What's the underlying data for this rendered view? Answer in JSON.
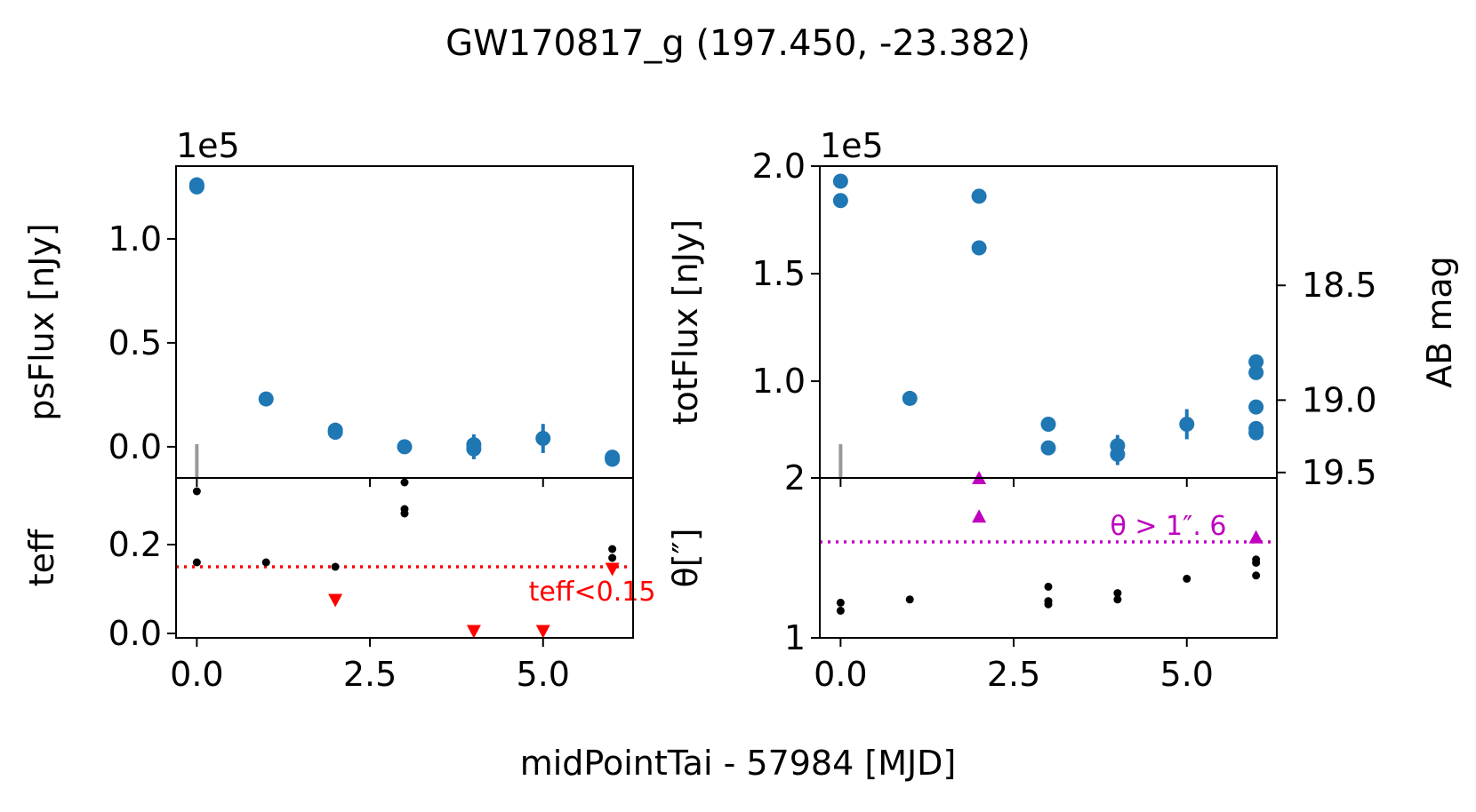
{
  "figure": {
    "title": "GW170817_g (197.450, -23.382)",
    "xlabel": "midPointTai - 57984 [MJD]"
  },
  "colors": {
    "point": "#1f77b4",
    "aux_point": "#000000",
    "teff_cut": "#ff0000",
    "theta_cut": "#bf00bf",
    "marker_line": "#999999"
  },
  "chart_data": [
    {
      "id": "psflux",
      "type": "scatter",
      "ylabel": "psFlux [nJy]",
      "offset_label": "1e5",
      "scale": 100000,
      "xlim": [
        -0.3,
        6.3
      ],
      "ylim": [
        -0.15,
        1.35
      ],
      "yticks": [
        0.0,
        0.5,
        1.0
      ],
      "ytick_labels": [
        "0.0",
        "0.5",
        "1.0"
      ],
      "xticks": [
        0.0,
        2.5,
        5.0
      ],
      "marker_x": 0.0,
      "points": [
        {
          "x": 0.0,
          "y": 1.26,
          "err": 0.0
        },
        {
          "x": 0.0,
          "y": 1.25,
          "err": 0.0
        },
        {
          "x": 1.0,
          "y": 0.23,
          "err": 0.01
        },
        {
          "x": 2.0,
          "y": 0.08,
          "err": 0.01
        },
        {
          "x": 2.0,
          "y": 0.07,
          "err": 0.01
        },
        {
          "x": 3.0,
          "y": 0.0,
          "err": 0.01
        },
        {
          "x": 4.0,
          "y": 0.01,
          "err": 0.05
        },
        {
          "x": 4.0,
          "y": -0.01,
          "err": 0.05
        },
        {
          "x": 5.0,
          "y": 0.04,
          "err": 0.07
        },
        {
          "x": 6.0,
          "y": -0.05,
          "err": 0.01
        },
        {
          "x": 6.0,
          "y": -0.06,
          "err": 0.01
        }
      ]
    },
    {
      "id": "totflux",
      "type": "scatter",
      "ylabel": "totFlux [nJy]",
      "offset_label": "1e5",
      "scale": 100000,
      "xlim": [
        -0.3,
        6.3
      ],
      "ylim": [
        0.55,
        2.0
      ],
      "yticks": [
        1.0,
        1.5,
        2.0
      ],
      "ytick_labels": [
        "1.0",
        "1.5",
        "2.0"
      ],
      "xticks": [
        0.0,
        2.5,
        5.0
      ],
      "marker_x": 0.0,
      "right_axis": {
        "label": "AB mag",
        "ticks": [
          18.5,
          19.0,
          19.5
        ],
        "tick_labels": [
          "18.5",
          "19.0",
          "19.5"
        ],
        "zero_point": 31.4
      },
      "points": [
        {
          "x": 0.0,
          "y": 1.93,
          "err": 0.0
        },
        {
          "x": 0.0,
          "y": 1.84,
          "err": 0.0
        },
        {
          "x": 1.0,
          "y": 0.92,
          "err": 0.0
        },
        {
          "x": 2.0,
          "y": 1.86,
          "err": 0.0
        },
        {
          "x": 2.0,
          "y": 1.62,
          "err": 0.0
        },
        {
          "x": 3.0,
          "y": 0.8,
          "err": 0.0
        },
        {
          "x": 3.0,
          "y": 0.69,
          "err": 0.0
        },
        {
          "x": 4.0,
          "y": 0.7,
          "err": 0.05
        },
        {
          "x": 4.0,
          "y": 0.66,
          "err": 0.05
        },
        {
          "x": 5.0,
          "y": 0.8,
          "err": 0.07
        },
        {
          "x": 6.0,
          "y": 1.09,
          "err": 0.0
        },
        {
          "x": 6.0,
          "y": 1.04,
          "err": 0.0
        },
        {
          "x": 6.0,
          "y": 0.88,
          "err": 0.0
        },
        {
          "x": 6.0,
          "y": 0.78,
          "err": 0.0
        },
        {
          "x": 6.0,
          "y": 0.76,
          "err": 0.0
        }
      ]
    },
    {
      "id": "teff",
      "type": "scatter",
      "ylabel": "teff",
      "xlim": [
        -0.3,
        6.3
      ],
      "ylim": [
        -0.01,
        0.35
      ],
      "yticks": [
        0.0,
        0.2
      ],
      "ytick_labels": [
        "0.0",
        "0.2"
      ],
      "xticks": [
        0.0,
        2.5,
        5.0
      ],
      "xtick_labels": [
        "0.0",
        "2.5",
        "5.0"
      ],
      "threshold": 0.15,
      "threshold_label": "teff<0.15",
      "points": [
        {
          "x": 0.0,
          "y": 0.32
        },
        {
          "x": 0.0,
          "y": 0.16
        },
        {
          "x": 1.0,
          "y": 0.16
        },
        {
          "x": 2.0,
          "y": 0.15
        },
        {
          "x": 3.0,
          "y": 0.34
        },
        {
          "x": 3.0,
          "y": 0.28
        },
        {
          "x": 3.0,
          "y": 0.27
        },
        {
          "x": 6.0,
          "y": 0.19
        },
        {
          "x": 6.0,
          "y": 0.17
        }
      ],
      "flagged": [
        {
          "x": 2.0,
          "y": 0.075
        },
        {
          "x": 4.0,
          "y": 0.005
        },
        {
          "x": 5.0,
          "y": 0.005
        },
        {
          "x": 6.0,
          "y": 0.145
        }
      ]
    },
    {
      "id": "theta",
      "type": "scatter",
      "ylabel": "θ[″]",
      "xlim": [
        -0.3,
        6.3
      ],
      "ylim": [
        1.0,
        2.0
      ],
      "yticks": [
        1,
        2
      ],
      "ytick_labels": [
        "1",
        "2"
      ],
      "xticks": [
        0.0,
        2.5,
        5.0
      ],
      "xtick_labels": [
        "0.0",
        "2.5",
        "5.0"
      ],
      "threshold": 1.6,
      "threshold_label": "θ > 1″. 6",
      "points": [
        {
          "x": 0.0,
          "y": 1.22
        },
        {
          "x": 0.0,
          "y": 1.17
        },
        {
          "x": 1.0,
          "y": 1.24
        },
        {
          "x": 3.0,
          "y": 1.32
        },
        {
          "x": 3.0,
          "y": 1.23
        },
        {
          "x": 3.0,
          "y": 1.21
        },
        {
          "x": 4.0,
          "y": 1.28
        },
        {
          "x": 4.0,
          "y": 1.24
        },
        {
          "x": 5.0,
          "y": 1.37
        },
        {
          "x": 6.0,
          "y": 1.49
        },
        {
          "x": 6.0,
          "y": 1.47
        },
        {
          "x": 6.0,
          "y": 1.39
        }
      ],
      "flagged": [
        {
          "x": 2.0,
          "y": 2.0
        },
        {
          "x": 2.0,
          "y": 1.76
        },
        {
          "x": 6.0,
          "y": 1.63
        }
      ]
    }
  ]
}
